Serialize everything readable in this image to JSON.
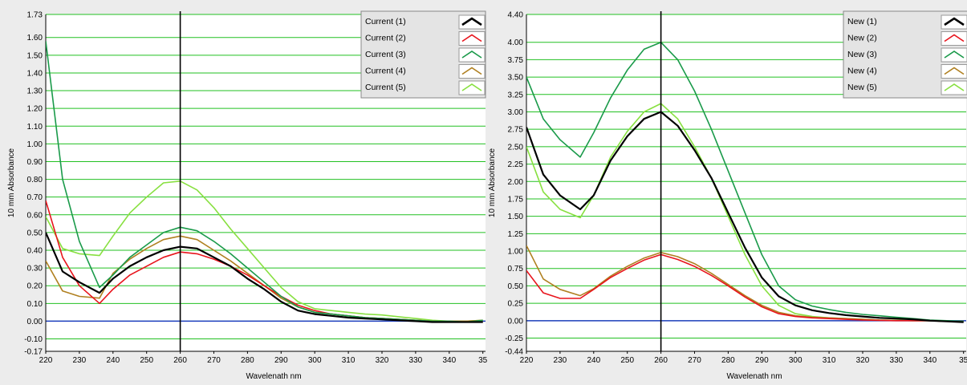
{
  "charts": [
    {
      "ylabel": "10 mm Absorbance",
      "xlabel": "Wavelenath nm",
      "xlim": [
        220,
        350
      ],
      "ylim": [
        -0.17,
        1.73
      ],
      "xticks": [
        "220",
        "230",
        "240",
        "250",
        "260",
        "270",
        "280",
        "290",
        "300",
        "310",
        "320",
        "330",
        "340",
        "35"
      ],
      "yticks": [
        "-0.17",
        "-0.10",
        "0.00",
        "0.10",
        "0.20",
        "0.30",
        "0.40",
        "0.50",
        "0.60",
        "0.70",
        "0.80",
        "0.90",
        "1.00",
        "1.10",
        "1.20",
        "1.30",
        "1.40",
        "1.50",
        "1.60",
        "1.73"
      ],
      "marker_x": 260,
      "legend": [
        {
          "label": "Current (1)",
          "color": "#000000"
        },
        {
          "label": "Current (2)",
          "color": "#e8141c"
        },
        {
          "label": "Current (3)",
          "color": "#1a9a4a"
        },
        {
          "label": "Current (4)",
          "color": "#b08020"
        },
        {
          "label": "Current (5)",
          "color": "#88e040"
        }
      ]
    },
    {
      "ylabel": "10 mm Absorbance",
      "xlabel": "Wavelenath nm",
      "xlim": [
        220,
        350
      ],
      "ylim": [
        -0.44,
        4.4
      ],
      "xticks": [
        "220",
        "230",
        "240",
        "250",
        "260",
        "270",
        "280",
        "290",
        "300",
        "310",
        "320",
        "330",
        "340",
        "35"
      ],
      "yticks": [
        "-0.44",
        "-0.25",
        "0.00",
        "0.25",
        "0.50",
        "0.75",
        "1.00",
        "1.25",
        "1.50",
        "1.75",
        "2.00",
        "2.25",
        "2.50",
        "2.75",
        "3.00",
        "3.25",
        "3.50",
        "3.75",
        "4.00",
        "4.40"
      ],
      "marker_x": 260,
      "legend": [
        {
          "label": "New (1)",
          "color": "#000000"
        },
        {
          "label": "New (2)",
          "color": "#e8141c"
        },
        {
          "label": "New (3)",
          "color": "#1a9a4a"
        },
        {
          "label": "New (4)",
          "color": "#b08020"
        },
        {
          "label": "New (5)",
          "color": "#88e040"
        }
      ]
    }
  ],
  "chart_data": [
    {
      "type": "line",
      "xlabel": "Wavelenath nm",
      "ylabel": "10 mm Absorbance",
      "xlim": [
        220,
        350
      ],
      "ylim": [
        -0.17,
        1.73
      ],
      "grid": true,
      "legend_position": "top-right",
      "x": [
        220,
        225,
        230,
        236,
        240,
        245,
        250,
        255,
        260,
        265,
        270,
        275,
        280,
        285,
        290,
        295,
        300,
        305,
        310,
        315,
        320,
        325,
        330,
        335,
        340,
        345,
        350
      ],
      "series": [
        {
          "name": "Current (1)",
          "color": "#000000",
          "values": [
            0.5,
            0.28,
            0.22,
            0.16,
            0.24,
            0.31,
            0.36,
            0.4,
            0.42,
            0.41,
            0.36,
            0.31,
            0.24,
            0.18,
            0.11,
            0.06,
            0.04,
            0.03,
            0.02,
            0.015,
            0.01,
            0.005,
            0.0,
            -0.005,
            -0.005,
            -0.005,
            -0.005
          ]
        },
        {
          "name": "Current (2)",
          "color": "#e8141c",
          "values": [
            0.68,
            0.36,
            0.2,
            0.1,
            0.18,
            0.26,
            0.31,
            0.36,
            0.39,
            0.38,
            0.35,
            0.31,
            0.26,
            0.2,
            0.14,
            0.09,
            0.06,
            0.04,
            0.03,
            0.02,
            0.015,
            0.01,
            0.005,
            0.0,
            -0.005,
            -0.005,
            -0.005
          ]
        },
        {
          "name": "Current (3)",
          "color": "#1a9a4a",
          "values": [
            1.58,
            0.8,
            0.45,
            0.19,
            0.26,
            0.36,
            0.43,
            0.5,
            0.53,
            0.51,
            0.45,
            0.38,
            0.3,
            0.22,
            0.14,
            0.08,
            0.05,
            0.04,
            0.03,
            0.02,
            0.015,
            0.01,
            0.005,
            0.0,
            0.0,
            -0.005,
            0.005
          ]
        },
        {
          "name": "Current (4)",
          "color": "#b08020",
          "values": [
            0.34,
            0.17,
            0.14,
            0.13,
            0.27,
            0.35,
            0.41,
            0.46,
            0.48,
            0.46,
            0.4,
            0.34,
            0.27,
            0.2,
            0.13,
            0.08,
            0.05,
            0.04,
            0.03,
            0.02,
            0.015,
            0.01,
            0.005,
            0.0,
            0.0,
            0.0,
            0.005
          ]
        },
        {
          "name": "Current (5)",
          "color": "#88e040",
          "values": [
            0.59,
            0.41,
            0.38,
            0.37,
            0.48,
            0.61,
            0.7,
            0.78,
            0.79,
            0.74,
            0.64,
            0.52,
            0.41,
            0.3,
            0.19,
            0.11,
            0.07,
            0.06,
            0.05,
            0.04,
            0.035,
            0.025,
            0.015,
            0.005,
            0.0,
            0.0,
            0.005
          ]
        }
      ]
    },
    {
      "type": "line",
      "xlabel": "Wavelenath nm",
      "ylabel": "10 mm Absorbance",
      "xlim": [
        220,
        350
      ],
      "ylim": [
        -0.44,
        4.4
      ],
      "grid": true,
      "legend_position": "top-right",
      "x": [
        220,
        225,
        230,
        236,
        240,
        245,
        250,
        255,
        260,
        265,
        270,
        275,
        280,
        285,
        290,
        295,
        300,
        305,
        310,
        315,
        320,
        325,
        330,
        335,
        340,
        345,
        350
      ],
      "series": [
        {
          "name": "New (1)",
          "color": "#000000",
          "values": [
            2.78,
            2.1,
            1.8,
            1.6,
            1.8,
            2.3,
            2.65,
            2.9,
            3.0,
            2.8,
            2.45,
            2.05,
            1.55,
            1.05,
            0.62,
            0.35,
            0.22,
            0.15,
            0.11,
            0.08,
            0.06,
            0.04,
            0.03,
            0.02,
            0.0,
            -0.01,
            -0.02
          ]
        },
        {
          "name": "New (2)",
          "color": "#e8141c",
          "values": [
            0.72,
            0.4,
            0.32,
            0.32,
            0.45,
            0.62,
            0.75,
            0.87,
            0.95,
            0.88,
            0.78,
            0.65,
            0.5,
            0.34,
            0.2,
            0.1,
            0.06,
            0.04,
            0.03,
            0.02,
            0.01,
            0.005,
            0.0,
            0.0,
            0.0,
            -0.01,
            -0.01
          ]
        },
        {
          "name": "New (3)",
          "color": "#1a9a4a",
          "values": [
            3.5,
            2.9,
            2.6,
            2.35,
            2.7,
            3.2,
            3.6,
            3.9,
            4.0,
            3.75,
            3.3,
            2.75,
            2.15,
            1.55,
            0.95,
            0.5,
            0.3,
            0.21,
            0.16,
            0.12,
            0.09,
            0.07,
            0.05,
            0.03,
            0.01,
            0.0,
            -0.01
          ]
        },
        {
          "name": "New (4)",
          "color": "#b08020",
          "values": [
            1.08,
            0.6,
            0.45,
            0.36,
            0.46,
            0.64,
            0.78,
            0.9,
            0.98,
            0.92,
            0.82,
            0.68,
            0.52,
            0.36,
            0.22,
            0.12,
            0.07,
            0.05,
            0.04,
            0.03,
            0.02,
            0.01,
            0.005,
            0.0,
            0.0,
            -0.01,
            -0.01
          ]
        },
        {
          "name": "New (5)",
          "color": "#88e040",
          "values": [
            2.5,
            1.85,
            1.6,
            1.48,
            1.8,
            2.35,
            2.72,
            3.0,
            3.12,
            2.9,
            2.5,
            2.05,
            1.5,
            0.95,
            0.5,
            0.22,
            0.1,
            0.06,
            0.04,
            0.03,
            0.02,
            0.01,
            0.005,
            0.0,
            0.0,
            -0.01,
            -0.01
          ]
        }
      ]
    }
  ]
}
